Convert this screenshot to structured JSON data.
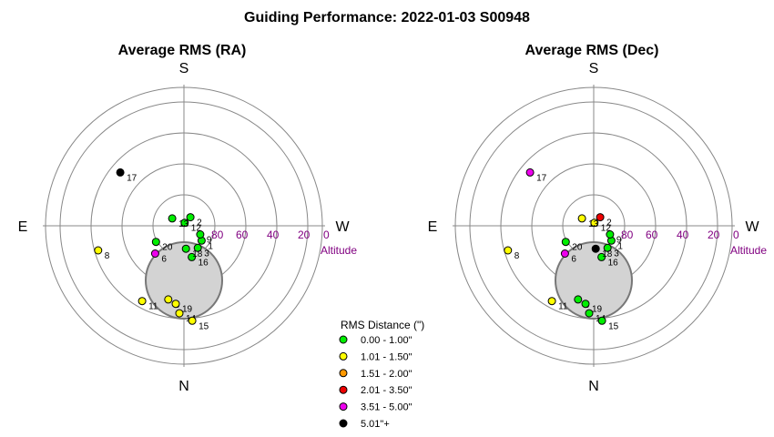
{
  "title": "Guiding Performance: 2022-01-03 S00948",
  "colors": {
    "grid": "#888888",
    "altitude": "#800080",
    "obstruction_fill": "#d3d3d3",
    "obstruction_stroke": "#777777"
  },
  "legend": {
    "title": "RMS Distance (\")",
    "items": [
      {
        "label": "0.00 - 1.00\"",
        "color": "#00ee00"
      },
      {
        "label": "1.01 - 1.50\"",
        "color": "#ffff00"
      },
      {
        "label": "1.51 - 2.00\"",
        "color": "#ff9900"
      },
      {
        "label": "2.01 - 3.50\"",
        "color": "#ee0000"
      },
      {
        "label": "3.51 - 5.00\"",
        "color": "#ee00ee"
      },
      {
        "label": "5.01\"+",
        "color": "#000000"
      }
    ]
  },
  "chart_data": [
    {
      "type": "scatter",
      "projection": "polar-sky",
      "title": "Average RMS (RA)",
      "directions": {
        "top": "S",
        "left": "E",
        "right": "W",
        "bottom": "N"
      },
      "radial_axis": {
        "label": "Altitude",
        "ticks": [
          "80",
          "60",
          "40",
          "20",
          "0"
        ],
        "range": [
          90,
          0
        ]
      },
      "points": [
        {
          "id": "1",
          "az": 230,
          "alt": 75,
          "color": "#00ee00"
        },
        {
          "id": "2",
          "az": 323,
          "alt": 83,
          "color": "#00ee00"
        },
        {
          "id": "3",
          "az": 212,
          "alt": 73,
          "color": "#00ee00"
        },
        {
          "id": "5",
          "az": 168,
          "alt": 41,
          "color": "#ffff00"
        },
        {
          "id": "6",
          "az": 134,
          "alt": 64,
          "color": "#ee00ee"
        },
        {
          "id": "8",
          "az": 106,
          "alt": 32,
          "color": "#ffff00"
        },
        {
          "id": "9",
          "az": 242,
          "alt": 78,
          "color": "#00ee00"
        },
        {
          "id": "11",
          "az": 151,
          "alt": 34,
          "color": "#ffff00"
        },
        {
          "id": "12",
          "az": 347,
          "alt": 88,
          "color": "#00ee00"
        },
        {
          "id": "13",
          "az": 58,
          "alt": 81,
          "color": "#00ee00"
        },
        {
          "id": "14",
          "az": 177,
          "alt": 33,
          "color": "#ffff00"
        },
        {
          "id": "15",
          "az": 185,
          "alt": 28,
          "color": "#ffff00"
        },
        {
          "id": "16",
          "az": 194,
          "alt": 69,
          "color": "#00ee00"
        },
        {
          "id": "17",
          "az": 50,
          "alt": 36,
          "color": "#000000"
        },
        {
          "id": "18",
          "az": 185,
          "alt": 75,
          "color": "#00ee00"
        },
        {
          "id": "19",
          "az": 174,
          "alt": 39,
          "color": "#ffff00"
        },
        {
          "id": "20",
          "az": 120,
          "alt": 69,
          "color": "#00ee00"
        }
      ]
    },
    {
      "type": "scatter",
      "projection": "polar-sky",
      "title": "Average RMS (Dec)",
      "directions": {
        "top": "S",
        "left": "E",
        "right": "W",
        "bottom": "N"
      },
      "radial_axis": {
        "label": "Altitude",
        "ticks": [
          "80",
          "60",
          "40",
          "20",
          "0"
        ],
        "range": [
          90,
          0
        ]
      },
      "points": [
        {
          "id": "1",
          "az": 230,
          "alt": 75,
          "color": "#00ee00"
        },
        {
          "id": "2",
          "az": 323,
          "alt": 83,
          "color": "#ee0000"
        },
        {
          "id": "3",
          "az": 212,
          "alt": 73,
          "color": "#00ee00"
        },
        {
          "id": "5",
          "az": 168,
          "alt": 41,
          "color": "#00ee00"
        },
        {
          "id": "6",
          "az": 134,
          "alt": 64,
          "color": "#ee00ee"
        },
        {
          "id": "8",
          "az": 106,
          "alt": 32,
          "color": "#ffff00"
        },
        {
          "id": "9",
          "az": 242,
          "alt": 78,
          "color": "#00ee00"
        },
        {
          "id": "11",
          "az": 151,
          "alt": 34,
          "color": "#ffff00"
        },
        {
          "id": "12",
          "az": 347,
          "alt": 88,
          "color": "#ffff00"
        },
        {
          "id": "13",
          "az": 58,
          "alt": 81,
          "color": "#ffff00"
        },
        {
          "id": "14",
          "az": 177,
          "alt": 33,
          "color": "#00ee00"
        },
        {
          "id": "15",
          "az": 185,
          "alt": 28,
          "color": "#00ee00"
        },
        {
          "id": "16",
          "az": 194,
          "alt": 69,
          "color": "#00ee00"
        },
        {
          "id": "17",
          "az": 50,
          "alt": 36,
          "color": "#ee00ee"
        },
        {
          "id": "18",
          "az": 185,
          "alt": 75,
          "color": "#000000"
        },
        {
          "id": "19",
          "az": 174,
          "alt": 39,
          "color": "#00ee00"
        },
        {
          "id": "20",
          "az": 120,
          "alt": 69,
          "color": "#00ee00"
        }
      ]
    }
  ]
}
